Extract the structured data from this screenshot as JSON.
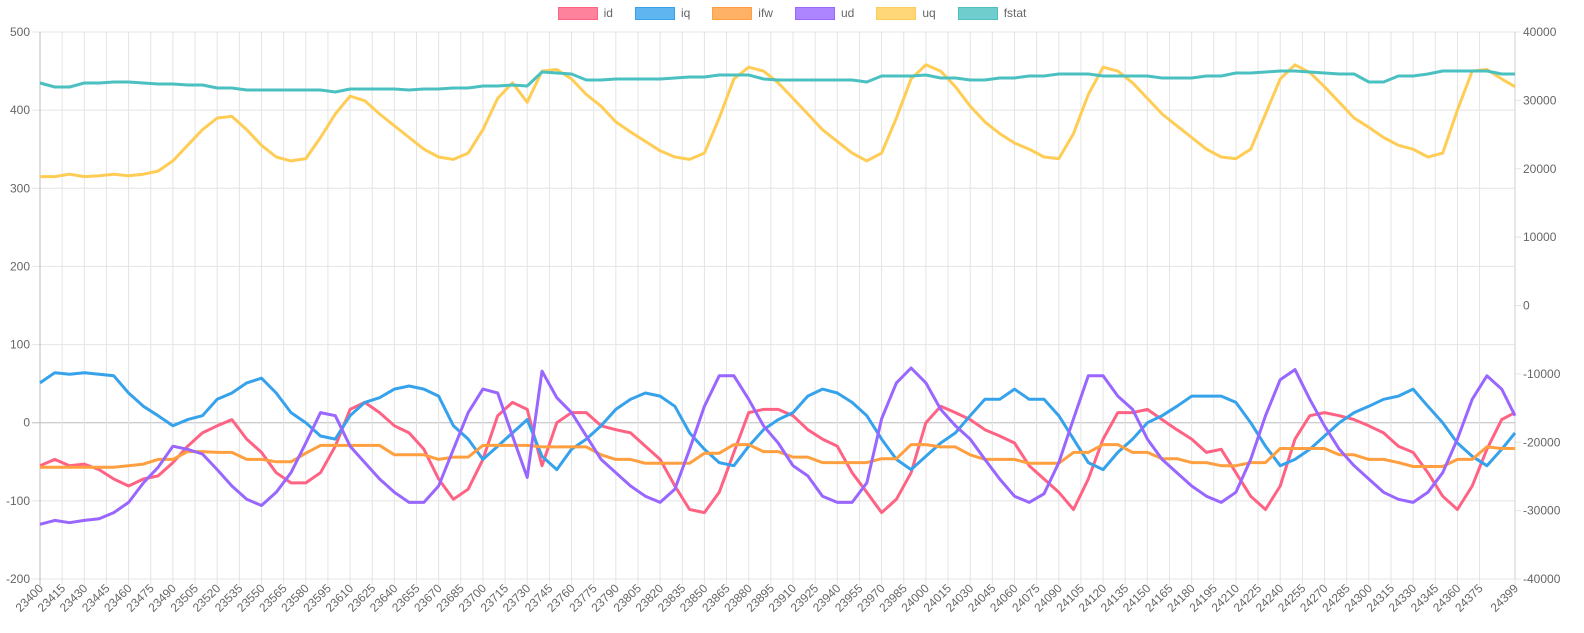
{
  "chart_data": {
    "type": "line",
    "title": "",
    "xlabel": "",
    "ylabel": "",
    "legend_position": "top-center",
    "grid": true,
    "y_left": {
      "range": [
        -200,
        500
      ],
      "ticks": [
        "500",
        "400",
        "300",
        "200",
        "100",
        "0",
        "-100",
        "-200"
      ],
      "tick_values": [
        500,
        400,
        300,
        200,
        100,
        0,
        -100,
        -200
      ]
    },
    "y_right": {
      "range": [
        -40000,
        40000
      ],
      "ticks": [
        "40000",
        "30000",
        "20000",
        "10000",
        "0",
        "-10000",
        "-20000",
        "-30000",
        "-40000"
      ],
      "tick_values": [
        40000,
        30000,
        20000,
        10000,
        0,
        -10000,
        -20000,
        -30000,
        -40000
      ]
    },
    "x_range": [
      23400,
      24399
    ],
    "x_ticks": [
      23400,
      23415,
      23430,
      23445,
      23460,
      23475,
      23490,
      23505,
      23520,
      23535,
      23550,
      23565,
      23580,
      23595,
      23610,
      23625,
      23640,
      23655,
      23670,
      23685,
      23700,
      23715,
      23730,
      23745,
      23760,
      23775,
      23790,
      23805,
      23820,
      23835,
      23850,
      23865,
      23880,
      23895,
      23910,
      23925,
      23940,
      23955,
      23970,
      23985,
      24000,
      24015,
      24030,
      24045,
      24060,
      24075,
      24090,
      24105,
      24120,
      24135,
      24150,
      24165,
      24180,
      24195,
      24210,
      24225,
      24240,
      24255,
      24270,
      24285,
      24300,
      24315,
      24330,
      24345,
      24360,
      24375,
      24399
    ],
    "x": [
      23400,
      23410,
      23420,
      23430,
      23440,
      23450,
      23460,
      23470,
      23480,
      23490,
      23500,
      23510,
      23520,
      23530,
      23540,
      23550,
      23560,
      23570,
      23580,
      23590,
      23600,
      23610,
      23620,
      23630,
      23640,
      23650,
      23660,
      23670,
      23680,
      23690,
      23700,
      23710,
      23720,
      23730,
      23740,
      23750,
      23760,
      23770,
      23780,
      23790,
      23800,
      23810,
      23820,
      23830,
      23840,
      23850,
      23860,
      23870,
      23880,
      23890,
      23900,
      23910,
      23920,
      23930,
      23940,
      23950,
      23960,
      23970,
      23980,
      23990,
      24000,
      24010,
      24020,
      24030,
      24040,
      24050,
      24060,
      24070,
      24080,
      24090,
      24100,
      24110,
      24120,
      24130,
      24140,
      24150,
      24160,
      24170,
      24180,
      24190,
      24200,
      24210,
      24220,
      24230,
      24240,
      24250,
      24260,
      24270,
      24280,
      24290,
      24300,
      24310,
      24320,
      24330,
      24340,
      24350,
      24360,
      24370,
      24380,
      24390,
      24399
    ],
    "series": [
      {
        "name": "id",
        "axis": "left",
        "color": "#ff6384",
        "values": [
          -55,
          -47,
          -55,
          -53,
          -60,
          -72,
          -81,
          -72,
          -68,
          -51,
          -30,
          -13,
          -4,
          4,
          -21,
          -38,
          -64,
          -77,
          -77,
          -64,
          -30,
          17,
          26,
          13,
          -4,
          -13,
          -34,
          -72,
          -98,
          -85,
          -47,
          9,
          26,
          17,
          -55,
          0,
          13,
          13,
          -4,
          -9,
          -13,
          -30,
          -47,
          -81,
          -111,
          -115,
          -89,
          -38,
          13,
          17,
          17,
          9,
          -9,
          -21,
          -30,
          -64,
          -89,
          -115,
          -98,
          -64,
          0,
          21,
          13,
          4,
          -9,
          -17,
          -26,
          -55,
          -72,
          -89,
          -111,
          -72,
          -21,
          13,
          13,
          17,
          4,
          -9,
          -21,
          -38,
          -34,
          -64,
          -94,
          -111,
          -81,
          -21,
          9,
          13,
          9,
          4,
          -4,
          -13,
          -30,
          -38,
          -64,
          -94,
          -111,
          -81,
          -34,
          4,
          13
        ]
      },
      {
        "name": "iq",
        "axis": "left",
        "color": "#36a2eb",
        "values": [
          51,
          64,
          62,
          64,
          62,
          60,
          38,
          21,
          9,
          -4,
          4,
          9,
          30,
          38,
          51,
          57,
          38,
          13,
          0,
          -17,
          -21,
          9,
          26,
          32,
          43,
          47,
          43,
          34,
          -4,
          -21,
          -47,
          -30,
          -13,
          4,
          -43,
          -60,
          -34,
          -21,
          -4,
          17,
          30,
          38,
          34,
          21,
          -13,
          -34,
          -51,
          -55,
          -30,
          -9,
          4,
          13,
          34,
          43,
          38,
          26,
          9,
          -21,
          -47,
          -60,
          -43,
          -26,
          -13,
          9,
          30,
          30,
          43,
          30,
          30,
          9,
          -21,
          -51,
          -60,
          -38,
          -21,
          0,
          9,
          21,
          34,
          34,
          34,
          26,
          0,
          -30,
          -55,
          -47,
          -34,
          -17,
          0,
          13,
          21,
          30,
          34,
          43,
          21,
          0,
          -26,
          -43,
          -55,
          -34,
          -13
        ]
      },
      {
        "name": "ifw",
        "axis": "left",
        "color": "#ff9f40",
        "values": [
          -57,
          -57,
          -57,
          -57,
          -57,
          -57,
          -55,
          -53,
          -47,
          -47,
          -37,
          -37,
          -38,
          -38,
          -47,
          -47,
          -50,
          -50,
          -39,
          -29,
          -29,
          -29,
          -29,
          -29,
          -41,
          -41,
          -41,
          -47,
          -44,
          -44,
          -29,
          -29,
          -29,
          -29,
          -31,
          -31,
          -31,
          -31,
          -41,
          -47,
          -47,
          -52,
          -52,
          -52,
          -52,
          -39,
          -39,
          -28,
          -28,
          -37,
          -37,
          -44,
          -44,
          -51,
          -51,
          -51,
          -51,
          -46,
          -46,
          -28,
          -28,
          -31,
          -31,
          -41,
          -47,
          -47,
          -47,
          -52,
          -52,
          -52,
          -38,
          -38,
          -28,
          -28,
          -38,
          -38,
          -46,
          -46,
          -51,
          -51,
          -55,
          -55,
          -51,
          -51,
          -33,
          -33,
          -33,
          -33,
          -41,
          -41,
          -47,
          -47,
          -51,
          -56,
          -56,
          -56,
          -47,
          -47,
          -31,
          -33,
          -33
        ]
      },
      {
        "name": "ud",
        "axis": "left",
        "color": "#9966ff",
        "values": [
          -130,
          -125,
          -128,
          -125,
          -123,
          -115,
          -102,
          -77,
          -57,
          -30,
          -34,
          -40,
          -60,
          -81,
          -98,
          -106,
          -89,
          -64,
          -26,
          13,
          9,
          -30,
          -51,
          -72,
          -89,
          -102,
          -102,
          -81,
          -34,
          13,
          43,
          38,
          -17,
          -70,
          66,
          32,
          13,
          -17,
          -47,
          -64,
          -81,
          -94,
          -102,
          -85,
          -34,
          21,
          60,
          60,
          30,
          -4,
          -26,
          -55,
          -68,
          -94,
          -102,
          -102,
          -77,
          5,
          51,
          70,
          51,
          17,
          -4,
          -21,
          -47,
          -72,
          -94,
          -102,
          -91,
          -51,
          5,
          60,
          60,
          34,
          17,
          -21,
          -47,
          -64,
          -81,
          -94,
          -102,
          -89,
          -47,
          9,
          55,
          68,
          30,
          -4,
          -34,
          -55,
          -72,
          -89,
          -98,
          -102,
          -89,
          -64,
          -21,
          30,
          60,
          43,
          9
        ]
      },
      {
        "name": "uq",
        "axis": "left",
        "color": "#ffcd56",
        "values": [
          315,
          315,
          318,
          315,
          316,
          318,
          316,
          318,
          322,
          335,
          355,
          375,
          390,
          392,
          375,
          355,
          340,
          335,
          338,
          365,
          395,
          418,
          412,
          395,
          380,
          365,
          350,
          340,
          337,
          345,
          375,
          415,
          435,
          410,
          450,
          452,
          440,
          420,
          405,
          385,
          372,
          360,
          348,
          340,
          337,
          345,
          390,
          440,
          455,
          450,
          435,
          415,
          395,
          375,
          360,
          345,
          335,
          345,
          390,
          440,
          458,
          450,
          430,
          405,
          385,
          370,
          358,
          350,
          340,
          338,
          370,
          420,
          455,
          450,
          435,
          415,
          395,
          380,
          365,
          350,
          340,
          338,
          350,
          395,
          440,
          458,
          448,
          430,
          410,
          390,
          378,
          365,
          355,
          350,
          340,
          345,
          400,
          450,
          452,
          440,
          430
        ]
      },
      {
        "name": "fstat",
        "axis": "right",
        "color": "#4bc0c0",
        "values": [
          32540,
          31960,
          31960,
          32540,
          32540,
          32690,
          32690,
          32540,
          32400,
          32400,
          32250,
          32250,
          31810,
          31810,
          31520,
          31520,
          31520,
          31520,
          31520,
          31520,
          31230,
          31670,
          31670,
          31670,
          31670,
          31520,
          31670,
          31670,
          31810,
          31810,
          32100,
          32100,
          32250,
          32100,
          34150,
          34000,
          33860,
          32980,
          32980,
          33130,
          33130,
          33130,
          33130,
          33270,
          33420,
          33420,
          33710,
          33710,
          33710,
          33130,
          32980,
          32980,
          32980,
          32980,
          32980,
          32980,
          32690,
          33570,
          33570,
          33570,
          33710,
          33270,
          33270,
          32980,
          32980,
          33270,
          33270,
          33570,
          33570,
          33860,
          33860,
          33860,
          33570,
          33570,
          33570,
          33570,
          33270,
          33270,
          33270,
          33570,
          33570,
          34010,
          34010,
          34150,
          34300,
          34300,
          34150,
          34000,
          33860,
          33860,
          32690,
          32690,
          33570,
          33570,
          33860,
          34300,
          34300,
          34300,
          34300,
          33860,
          33860
        ]
      }
    ]
  }
}
